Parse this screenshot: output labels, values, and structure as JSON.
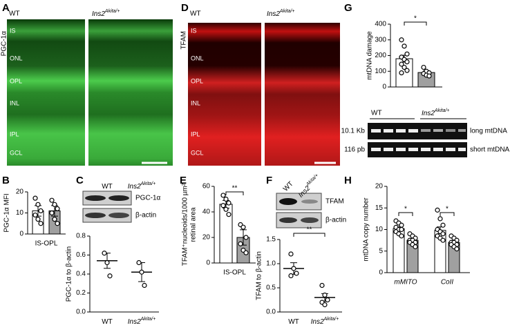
{
  "panel_a": {
    "letter": "A",
    "stain": "PGC-1α",
    "wt": "WT",
    "mut": {
      "text": "Ins2",
      "sup": "Akita/+"
    },
    "layers": [
      "IS",
      "ONL",
      "OPL",
      "INL",
      "IPL",
      "GCL"
    ]
  },
  "panel_d": {
    "letter": "D",
    "stain": "TFAM",
    "wt": "WT",
    "mut": {
      "text": "Ins2",
      "sup": "Akita/+"
    },
    "layers": [
      "IS",
      "ONL",
      "OPL",
      "INL",
      "IPL",
      "GCL"
    ]
  },
  "gel": {
    "wt": "WT",
    "mut": {
      "text": "Ins2",
      "sup": "Akita/+"
    },
    "sizes": [
      "10.1 Kb",
      "116 pb"
    ],
    "bands": [
      "long mtDNA",
      "short mtDNA"
    ]
  },
  "chart_data": [
    {
      "type": "bar",
      "letter": "G",
      "ylabel": "mtDNA damage",
      "categories": [
        null
      ],
      "ylim": [
        0,
        400
      ],
      "yticks": [
        0,
        100,
        200,
        300,
        400
      ],
      "sig": [
        "*"
      ],
      "series": [
        {
          "color": "#ffffff",
          "values": [
            180
          ],
          "errors": [
            22
          ],
          "points": [
            [
              300,
              260,
              210,
              190,
              175,
              160,
              145,
              125,
              105,
              90
            ]
          ]
        },
        {
          "color": "#a0a0a0",
          "values": [
            92
          ],
          "errors": [
            10
          ],
          "points": [
            [
              125,
              100,
              90,
              85,
              75,
              70
            ]
          ]
        }
      ]
    },
    {
      "type": "bar",
      "letter": "B",
      "ylabel": "PGC-1α MFI",
      "categories": [
        "IS-OPL"
      ],
      "ylim": [
        0,
        20
      ],
      "yticks": [
        0,
        10,
        20
      ],
      "series": [
        {
          "color": "#ffffff",
          "values": [
            11
          ],
          "errors": [
            2.5
          ],
          "points": [
            [
              17,
              14,
              11,
              9,
              7,
              5
            ]
          ]
        },
        {
          "color": "#a0a0a0",
          "values": [
            11
          ],
          "errors": [
            2.5
          ],
          "points": [
            [
              16,
              14,
              12,
              10,
              7,
              5
            ]
          ]
        }
      ]
    },
    {
      "type": "dot",
      "letter": "C",
      "ylabel": "PGC-1α  to β-actin",
      "blot_labels": [
        "PGC-1α",
        "β-actin"
      ],
      "categories": [
        null
      ],
      "ylim": [
        0,
        0.8
      ],
      "yticks": [
        {
          "value": 0,
          "label": "0.0"
        },
        0.2,
        0.4,
        0.6,
        0.8
      ],
      "series": [
        {
          "name": {
            "text": "WT"
          },
          "color": "#000000",
          "values": [
            0.54
          ],
          "errors": [
            0.08
          ],
          "points": [
            [
              0.62,
              0.52,
              0.38
            ]
          ]
        },
        {
          "name": {
            "text": "Ins2",
            "sup": "Akita/+"
          },
          "color": "#000000",
          "values": [
            0.42
          ],
          "errors": [
            0.1
          ],
          "points": [
            [
              0.52,
              0.42,
              0.28
            ]
          ]
        }
      ]
    },
    {
      "type": "bar",
      "letter": "E",
      "ylabel": [
        "TFAM⁺nucleoids/1000 µm²",
        "retinal area"
      ],
      "categories": [
        "IS-OPL"
      ],
      "ylim": [
        0,
        60
      ],
      "yticks": [
        0,
        20,
        40,
        60
      ],
      "sig": [
        "**"
      ],
      "series": [
        {
          "color": "#ffffff",
          "values": [
            46
          ],
          "errors": [
            3
          ],
          "points": [
            [
              53,
              50,
              47,
              45,
              42,
              38
            ]
          ]
        },
        {
          "color": "#a0a0a0",
          "values": [
            20
          ],
          "errors": [
            6
          ],
          "points": [
            [
              30,
              28,
              20,
              15,
              10,
              8
            ]
          ]
        }
      ]
    },
    {
      "type": "dot",
      "letter": "F",
      "ylabel": "TFAM  to β-actin",
      "blot_labels": [
        "TFAM",
        "β-actin"
      ],
      "categories": [
        null
      ],
      "ylim": [
        0,
        1.5
      ],
      "yticks": [
        {
          "value": 0,
          "label": "0.0"
        },
        0.5,
        {
          "value": 1,
          "label": "1.0"
        },
        1.5
      ],
      "sig": [
        "**"
      ],
      "series": [
        {
          "name": {
            "text": "WT"
          },
          "color": "#000000",
          "values": [
            0.9
          ],
          "errors": [
            0.12
          ],
          "points": [
            [
              1.2,
              0.9,
              0.8,
              0.75
            ]
          ]
        },
        {
          "name": {
            "text": "Ins2",
            "sup": "Akita/+"
          },
          "color": "#000000",
          "values": [
            0.3
          ],
          "errors": [
            0.08
          ],
          "points": [
            [
              0.55,
              0.35,
              0.25,
              0.2,
              0.15
            ]
          ]
        }
      ]
    },
    {
      "type": "bar",
      "letter": "H",
      "ylabel": "mtDNA copy number",
      "categories": [
        "mMITO",
        "CoII"
      ],
      "ylim": [
        0,
        20
      ],
      "yticks": [
        0,
        5,
        10,
        15,
        20
      ],
      "sig": [
        "*",
        "*"
      ],
      "series": [
        {
          "color": "#ffffff",
          "values": [
            10.2,
            9.8
          ],
          "errors": [
            0.4,
            0.8
          ],
          "points": [
            [
              12,
              11.5,
              11,
              10.5,
              10,
              10,
              9.5,
              9,
              8.5
            ],
            [
              14.5,
              12.5,
              11,
              10,
              9.5,
              9,
              8.5,
              8,
              7.5
            ]
          ]
        },
        {
          "color": "#a0a0a0",
          "values": [
            7.5,
            7.0
          ],
          "errors": [
            0.35,
            0.35
          ],
          "points": [
            [
              9,
              8.5,
              8,
              7.5,
              7.5,
              7,
              7,
              6.5,
              6
            ],
            [
              8.5,
              8,
              7.5,
              7,
              7,
              6.5,
              6.5,
              6,
              5.5
            ]
          ]
        }
      ]
    }
  ]
}
